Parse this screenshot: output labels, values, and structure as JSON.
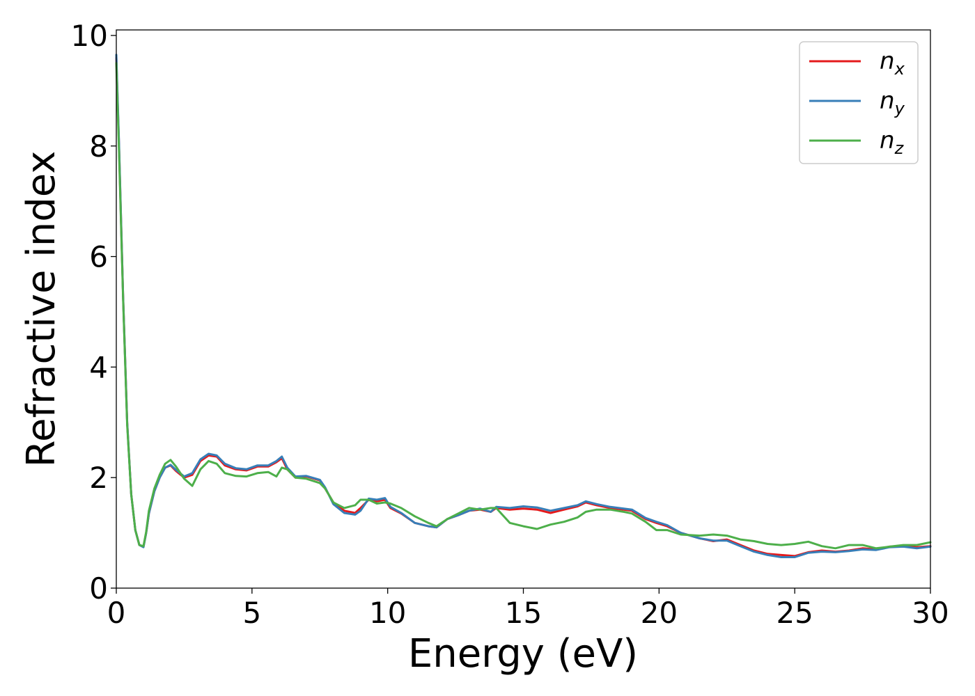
{
  "chart_data": {
    "type": "line",
    "title": "",
    "xlabel": "Energy (eV)",
    "ylabel": "Refractive index",
    "xlim": [
      0,
      30
    ],
    "ylim": [
      0,
      10.1
    ],
    "xticks": [
      0,
      5,
      10,
      15,
      20,
      25,
      30
    ],
    "yticks": [
      0,
      2,
      4,
      6,
      8,
      10
    ],
    "grid": false,
    "legend_position": "top-right",
    "series": [
      {
        "name": "n_x",
        "label_base": "n",
        "label_sub": "x",
        "color": "#e41a1c",
        "x": [
          0,
          0.1,
          0.25,
          0.4,
          0.55,
          0.7,
          0.85,
          1.0,
          1.1,
          1.2,
          1.4,
          1.6,
          1.8,
          2.0,
          2.2,
          2.5,
          2.8,
          3.1,
          3.4,
          3.7,
          4.0,
          4.4,
          4.8,
          5.2,
          5.6,
          5.9,
          6.1,
          6.3,
          6.6,
          7.0,
          7.5,
          7.7,
          8.0,
          8.4,
          8.8,
          9.0,
          9.3,
          9.6,
          9.9,
          10.1,
          10.5,
          11.0,
          11.5,
          11.8,
          12.2,
          12.6,
          13.0,
          13.4,
          13.8,
          14.0,
          14.5,
          15.0,
          15.5,
          16.0,
          16.5,
          17.0,
          17.3,
          17.7,
          18.2,
          18.7,
          19.0,
          19.5,
          19.9,
          20.3,
          20.8,
          21.5,
          22.0,
          22.5,
          23.0,
          23.5,
          24.0,
          24.5,
          25.0,
          25.5,
          26.0,
          26.5,
          27.0,
          27.5,
          28.0,
          28.5,
          29.0,
          29.5,
          30.0
        ],
        "y": [
          9.6,
          8.0,
          5.3,
          3.0,
          1.7,
          1.05,
          0.78,
          0.75,
          1.0,
          1.35,
          1.75,
          2.0,
          2.18,
          2.22,
          2.12,
          2.0,
          2.05,
          2.3,
          2.4,
          2.38,
          2.22,
          2.15,
          2.13,
          2.2,
          2.2,
          2.28,
          2.35,
          2.15,
          2.0,
          2.02,
          1.95,
          1.8,
          1.55,
          1.4,
          1.36,
          1.45,
          1.6,
          1.57,
          1.6,
          1.45,
          1.35,
          1.18,
          1.12,
          1.1,
          1.25,
          1.32,
          1.4,
          1.42,
          1.38,
          1.45,
          1.42,
          1.44,
          1.42,
          1.36,
          1.42,
          1.48,
          1.55,
          1.5,
          1.45,
          1.42,
          1.4,
          1.25,
          1.18,
          1.12,
          1.0,
          0.9,
          0.85,
          0.88,
          0.78,
          0.68,
          0.62,
          0.6,
          0.58,
          0.65,
          0.68,
          0.66,
          0.68,
          0.72,
          0.7,
          0.75,
          0.76,
          0.74,
          0.76
        ]
      },
      {
        "name": "n_y",
        "label_base": "n",
        "label_sub": "y",
        "color": "#377eb8",
        "x": [
          0,
          0.1,
          0.25,
          0.4,
          0.55,
          0.7,
          0.85,
          1.0,
          1.1,
          1.2,
          1.4,
          1.6,
          1.8,
          2.0,
          2.2,
          2.5,
          2.8,
          3.1,
          3.4,
          3.7,
          4.0,
          4.4,
          4.8,
          5.2,
          5.6,
          5.9,
          6.1,
          6.3,
          6.6,
          7.0,
          7.5,
          7.7,
          8.0,
          8.4,
          8.8,
          9.0,
          9.3,
          9.6,
          9.9,
          10.1,
          10.5,
          11.0,
          11.5,
          11.8,
          12.2,
          12.6,
          13.0,
          13.4,
          13.8,
          14.0,
          14.5,
          15.0,
          15.5,
          16.0,
          16.5,
          17.0,
          17.3,
          17.7,
          18.2,
          18.7,
          19.0,
          19.5,
          19.9,
          20.3,
          20.8,
          21.5,
          22.0,
          22.5,
          23.0,
          23.5,
          24.0,
          24.5,
          25.0,
          25.5,
          26.0,
          26.5,
          27.0,
          27.5,
          28.0,
          28.5,
          29.0,
          29.5,
          30.0
        ],
        "y": [
          9.65,
          8.05,
          5.3,
          3.0,
          1.7,
          1.05,
          0.78,
          0.74,
          1.0,
          1.35,
          1.75,
          2.0,
          2.18,
          2.23,
          2.14,
          2.02,
          2.08,
          2.33,
          2.43,
          2.4,
          2.25,
          2.17,
          2.15,
          2.22,
          2.22,
          2.3,
          2.38,
          2.18,
          2.02,
          2.03,
          1.96,
          1.82,
          1.52,
          1.36,
          1.33,
          1.4,
          1.62,
          1.6,
          1.63,
          1.47,
          1.36,
          1.18,
          1.12,
          1.1,
          1.25,
          1.32,
          1.4,
          1.44,
          1.38,
          1.47,
          1.45,
          1.48,
          1.46,
          1.4,
          1.45,
          1.5,
          1.57,
          1.52,
          1.47,
          1.44,
          1.42,
          1.27,
          1.2,
          1.14,
          1.0,
          0.9,
          0.86,
          0.86,
          0.76,
          0.66,
          0.6,
          0.56,
          0.56,
          0.64,
          0.66,
          0.65,
          0.67,
          0.7,
          0.69,
          0.74,
          0.75,
          0.72,
          0.75
        ]
      },
      {
        "name": "n_z",
        "label_base": "n",
        "label_sub": "z",
        "color": "#4daf4a",
        "x": [
          0,
          0.1,
          0.25,
          0.4,
          0.55,
          0.7,
          0.85,
          1.0,
          1.1,
          1.2,
          1.4,
          1.6,
          1.8,
          2.0,
          2.2,
          2.5,
          2.8,
          3.1,
          3.4,
          3.7,
          4.0,
          4.4,
          4.8,
          5.2,
          5.6,
          5.9,
          6.1,
          6.3,
          6.6,
          7.0,
          7.5,
          7.7,
          8.0,
          8.4,
          8.8,
          9.0,
          9.3,
          9.6,
          9.9,
          10.1,
          10.5,
          11.0,
          11.5,
          11.8,
          12.2,
          12.6,
          13.0,
          13.4,
          13.8,
          14.0,
          14.5,
          15.0,
          15.5,
          16.0,
          16.5,
          17.0,
          17.3,
          17.7,
          18.2,
          18.7,
          19.0,
          19.5,
          19.9,
          20.3,
          20.8,
          21.5,
          22.0,
          22.5,
          23.0,
          23.5,
          24.0,
          24.5,
          25.0,
          25.5,
          26.0,
          26.5,
          27.0,
          27.5,
          28.0,
          28.5,
          29.0,
          29.5,
          30.0
        ],
        "y": [
          9.5,
          7.9,
          5.25,
          2.95,
          1.7,
          1.05,
          0.78,
          0.76,
          1.02,
          1.4,
          1.8,
          2.05,
          2.25,
          2.32,
          2.2,
          1.98,
          1.85,
          2.15,
          2.3,
          2.25,
          2.08,
          2.03,
          2.02,
          2.08,
          2.1,
          2.02,
          2.18,
          2.15,
          2.0,
          1.98,
          1.9,
          1.8,
          1.55,
          1.45,
          1.5,
          1.6,
          1.6,
          1.53,
          1.55,
          1.53,
          1.45,
          1.3,
          1.18,
          1.12,
          1.25,
          1.35,
          1.45,
          1.42,
          1.45,
          1.45,
          1.18,
          1.12,
          1.07,
          1.15,
          1.2,
          1.28,
          1.38,
          1.42,
          1.42,
          1.38,
          1.35,
          1.2,
          1.05,
          1.05,
          0.97,
          0.95,
          0.97,
          0.95,
          0.88,
          0.85,
          0.8,
          0.78,
          0.8,
          0.84,
          0.76,
          0.72,
          0.78,
          0.78,
          0.72,
          0.75,
          0.78,
          0.78,
          0.83
        ]
      }
    ]
  }
}
